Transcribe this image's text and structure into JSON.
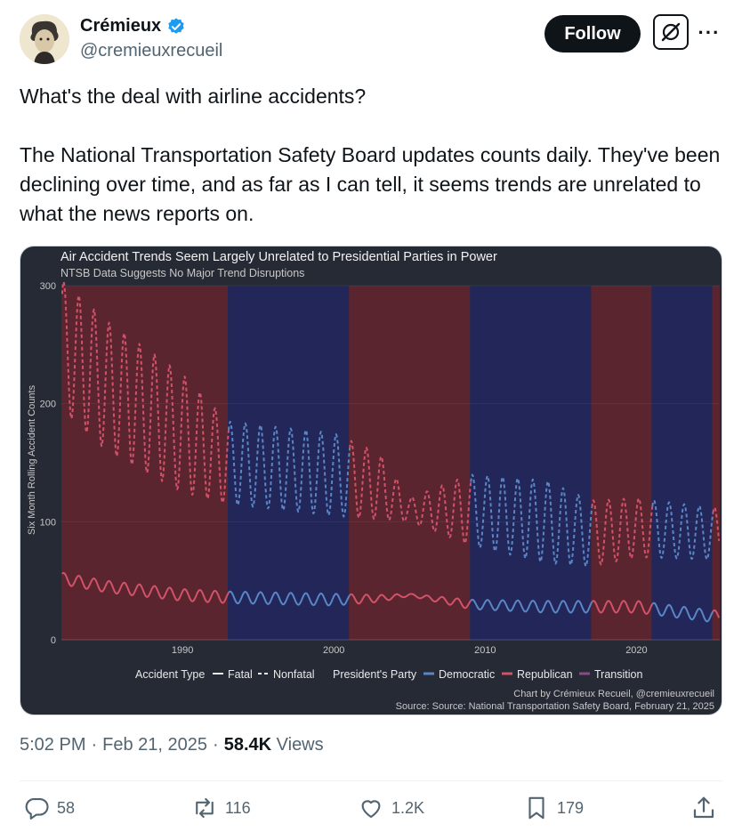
{
  "author": {
    "display_name": "Crémieux",
    "handle": "@cremieuxrecueil",
    "verified": true
  },
  "buttons": {
    "follow": "Follow",
    "more": "···"
  },
  "tweet": {
    "line1": "What's the deal with airline accidents?",
    "line2": "The National Transportation Safety Board updates counts daily. They've been declining over time, and as far as I can tell, it seems trends are unrelated to what the news reports on."
  },
  "chart_data": {
    "type": "line",
    "title": "Air Accident Trends Seem Largely Unrelated to Presidential Parties in Power",
    "subtitle": "NTSB Data Suggests No Major Trend Disruptions",
    "ylabel": "Six Month Rolling Accident Counts",
    "ylim": [
      0,
      300
    ],
    "xlim": [
      1982,
      2025.5
    ],
    "yticks": [
      "0",
      "100",
      "200",
      "300"
    ],
    "xticks": [
      "1990",
      "2000",
      "2010",
      "2020"
    ],
    "periods": [
      {
        "start": 1982,
        "end": 1993,
        "party": "Republican"
      },
      {
        "start": 1993,
        "end": 2001,
        "party": "Democratic"
      },
      {
        "start": 2001,
        "end": 2009,
        "party": "Republican"
      },
      {
        "start": 2009,
        "end": 2017,
        "party": "Democratic"
      },
      {
        "start": 2017,
        "end": 2021,
        "party": "Republican"
      },
      {
        "start": 2021,
        "end": 2025,
        "party": "Democratic"
      },
      {
        "start": 2025,
        "end": 2025.5,
        "party": "Republican"
      }
    ],
    "series": [
      {
        "name": "Nonfatal",
        "style": "dashed",
        "anchors_x": [
          1982,
          1985,
          1990,
          1993,
          2000,
          2003,
          2005,
          2009,
          2014,
          2017,
          2020,
          2025
        ],
        "anchors_mean": [
          250,
          215,
          175,
          150,
          140,
          130,
          110,
          110,
          100,
          90,
          95,
          90
        ],
        "anchors_amp": [
          55,
          55,
          50,
          35,
          35,
          28,
          10,
          30,
          35,
          28,
          25,
          22
        ]
      },
      {
        "name": "Fatal",
        "style": "solid",
        "anchors_x": [
          1982,
          1985,
          1990,
          1993,
          2000,
          2003,
          2005,
          2009,
          2014,
          2017,
          2020,
          2025
        ],
        "anchors_mean": [
          52,
          45,
          38,
          36,
          34,
          35,
          38,
          30,
          28,
          28,
          28,
          20
        ],
        "anchors_amp": [
          5,
          5,
          5,
          5,
          5,
          3,
          1,
          4,
          5,
          5,
          5,
          5
        ]
      }
    ],
    "legend": {
      "type_title": "Accident Type",
      "type_items": [
        "Fatal",
        "Nonfatal"
      ],
      "party_title": "President's Party",
      "party_items": [
        "Democratic",
        "Republican",
        "Transition"
      ]
    },
    "credit": "Chart by Crémieux Recueil, @cremieuxrecueil",
    "source": "Source: Source: National Transportation Safety Board, February 21, 2025",
    "colors": {
      "background": "#262a35",
      "republican_band": "#5b2530",
      "democratic_band": "#222659",
      "republican_line": "#d15269",
      "democratic_line": "#5a86c6",
      "transition_line": "#8a4a86"
    }
  },
  "meta": {
    "time": "5:02 PM",
    "date": "Feb 21, 2025",
    "views_count": "58.4K",
    "views_label": "Views"
  },
  "actions": {
    "replies": "58",
    "reposts": "116",
    "likes": "1.2K",
    "bookmarks": "179"
  }
}
